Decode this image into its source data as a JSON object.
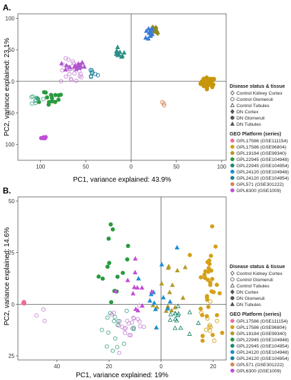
{
  "figure": {
    "panels": [
      {
        "label": "A."
      },
      {
        "label": "B."
      }
    ],
    "legend": {
      "disease_title": "Disease status & tissue",
      "disease_items": [
        {
          "label": "Control Kidney Cortex",
          "shape": "diamond",
          "filled": false
        },
        {
          "label": "Control Glomeruli",
          "shape": "circle",
          "filled": false
        },
        {
          "label": "Control Tubules",
          "shape": "triangle",
          "filled": false
        },
        {
          "label": "DN Cortex",
          "shape": "diamond",
          "filled": true
        },
        {
          "label": "DN Glomeruli",
          "shape": "circle",
          "filled": true
        },
        {
          "label": "DN Tubules",
          "shape": "triangle",
          "filled": true
        }
      ],
      "platform_title": "GEO Platform (series)",
      "platform_items": [
        {
          "label": "GPL17586 (GSE111154)",
          "color": "#f06a9a"
        },
        {
          "label": "GPL17586 (GSE96804)",
          "color": "#d4a017"
        },
        {
          "label": "GPL19184 (GSE99340)",
          "color": "#b59a2a"
        },
        {
          "label": "GPL22945 (GSE104948)",
          "color": "#2a9a3f"
        },
        {
          "label": "GPL22945 (GSE104954)",
          "color": "#1f8a6f"
        },
        {
          "label": "GPL24120 (GSE104948)",
          "color": "#1a8ed1"
        },
        {
          "label": "GPL24120 (GSE104954)",
          "color": "#1b7f9a"
        },
        {
          "label": "GPL571 (GSE301222)",
          "color": "#d7845a"
        },
        {
          "label": "GPL6300 (GSE1009)",
          "color": "#c14fd6"
        }
      ]
    }
  },
  "chart_data": [
    {
      "panel": "A.",
      "type": "scatter",
      "xlabel": "PC1, variance explained: 43.9%",
      "ylabel": "PC2, variance explained: 23.1%",
      "xticks": [
        {
          "v": -100,
          "label": "100"
        },
        {
          "v": -50,
          "label": "50"
        },
        {
          "v": 0,
          "label": "0"
        },
        {
          "v": 50,
          "label": "50"
        },
        {
          "v": 100,
          "label": "100"
        }
      ],
      "yticks": [
        {
          "v": 100,
          "label": "100"
        },
        {
          "v": 50,
          "label": "50"
        },
        {
          "v": 0,
          "label": "0"
        },
        {
          "v": -50,
          "label": "50"
        },
        {
          "v": -100,
          "label": "100"
        }
      ],
      "xlim": [
        -125,
        105
      ],
      "ylim": [
        -125,
        107
      ],
      "grid": false,
      "zero_lines": true,
      "clusters": [
        {
          "name": "GSE96804",
          "color": "#c8960c",
          "shape": "circle",
          "filled": true,
          "cx": 85,
          "cy": -2,
          "sx": 4,
          "sy": 4,
          "n": 45
        },
        {
          "name": "GSE104948",
          "color": "#8e8a1c",
          "shape": "diamond",
          "filled": true,
          "cx": 28,
          "cy": 82,
          "sx": 2,
          "sy": 3,
          "n": 10
        },
        {
          "name": "GSE104954",
          "color": "#3a7bd5",
          "shape": "triangle",
          "filled": true,
          "cx": 19,
          "cy": 75,
          "sx": 3,
          "sy": 5,
          "n": 12
        },
        {
          "name": "GSE99340",
          "color": "#2c8f86",
          "shape": "triangle",
          "filled": true,
          "cx": -13,
          "cy": 44,
          "sx": 3,
          "sy": 4,
          "n": 10
        },
        {
          "name": "GSE104954-glom",
          "color": "#1b7f9a",
          "shape": "circle",
          "filled": false,
          "cx": -43,
          "cy": 12,
          "sx": 3,
          "sy": 4,
          "n": 8
        },
        {
          "name": "GSE104948-ctrl",
          "color": "#c98ad8",
          "shape": "circle",
          "filled": false,
          "cx": -64,
          "cy": 15,
          "sx": 7,
          "sy": 10,
          "n": 28
        },
        {
          "name": "GSE104948-tub",
          "color": "#b256cf",
          "shape": "triangle",
          "filled": true,
          "cx": -63,
          "cy": 24,
          "sx": 6,
          "sy": 4,
          "n": 16
        },
        {
          "name": "GSE104948-green",
          "color": "#2a9a3f",
          "shape": "circle",
          "filled": true,
          "cx": -92,
          "cy": -25,
          "sx": 11,
          "sy": 7,
          "n": 16
        },
        {
          "name": "GSE104954-ctrl",
          "color": "#4aa98a",
          "shape": "circle",
          "filled": false,
          "cx": -104,
          "cy": -29,
          "sx": 6,
          "sy": 5,
          "n": 10
        },
        {
          "name": "GSE1009",
          "color": "#c14fd6",
          "shape": "circle",
          "filled": true,
          "cx": -95,
          "cy": -89,
          "sx": 2,
          "sy": 1,
          "n": 5
        },
        {
          "name": "GSE301222",
          "color": "#d7845a",
          "shape": "circle",
          "filled": false,
          "cx": 36,
          "cy": -34,
          "sx": 1,
          "sy": 3,
          "n": 3
        }
      ]
    },
    {
      "panel": "B.",
      "type": "scatter",
      "xlabel": "PC1, variance explained: 19%",
      "ylabel": "PC2, variance explained: 14.6%",
      "xticks": [
        {
          "v": -40,
          "label": "40"
        },
        {
          "v": -20,
          "label": "20"
        },
        {
          "v": 0,
          "label": "0"
        },
        {
          "v": 20,
          "label": "20"
        }
      ],
      "yticks": [
        {
          "v": 50,
          "label": "50"
        },
        {
          "v": 25,
          "label": "25"
        },
        {
          "v": 0,
          "label": "0"
        },
        {
          "v": -25,
          "label": "25"
        }
      ],
      "xlim": [
        -55,
        25
      ],
      "ylim": [
        -27,
        52
      ],
      "grid": false,
      "zero_lines": true,
      "clusters": [
        {
          "name": "GSE96804-right",
          "color": "#d4a017",
          "shape": "circle",
          "filled": true,
          "cx": 18,
          "cy": 10,
          "sx": 2,
          "sy": 12,
          "n": 34
        },
        {
          "name": "GSE96804-right-open",
          "color": "#d4a017",
          "shape": "circle",
          "filled": false,
          "cx": 19,
          "cy": -10,
          "sx": 2,
          "sy": 5,
          "n": 10
        },
        {
          "name": "GSE99340-mid",
          "color": "#b59a2a",
          "shape": "triangle",
          "filled": true,
          "cx": 3,
          "cy": 8,
          "sx": 3,
          "sy": 12,
          "n": 14
        },
        {
          "name": "GSE104954-tub",
          "color": "#1f8a6f",
          "shape": "triangle",
          "filled": false,
          "cx": 6,
          "cy": -8,
          "sx": 3,
          "sy": 4,
          "n": 14
        },
        {
          "name": "GSE104948-blue",
          "color": "#1a8ed1",
          "shape": "triangle",
          "filled": true,
          "cx": 0,
          "cy": 10,
          "sx": 3,
          "sy": 10,
          "n": 12
        },
        {
          "name": "GSE104948-green",
          "color": "#2a9a3f",
          "shape": "circle",
          "filled": true,
          "cx": -18,
          "cy": 18,
          "sx": 3,
          "sy": 12,
          "n": 14
        },
        {
          "name": "GSE104948-ctrl",
          "color": "#c98ad8",
          "shape": "circle",
          "filled": false,
          "cx": -12,
          "cy": -10,
          "sx": 4,
          "sy": 4,
          "n": 22
        },
        {
          "name": "GSE104954-ctrl",
          "color": "#4aa98a",
          "shape": "circle",
          "filled": false,
          "cx": -17,
          "cy": -12,
          "sx": 4,
          "sy": 4,
          "n": 16
        },
        {
          "name": "GSE104948-tub",
          "color": "#c14fd6",
          "shape": "triangle",
          "filled": true,
          "cx": -11,
          "cy": 8,
          "sx": 4,
          "sy": 6,
          "n": 12
        },
        {
          "name": "GSE111154",
          "color": "#f06a9a",
          "shape": "circle",
          "filled": true,
          "cx": -53,
          "cy": 0.5,
          "sx": 0.5,
          "sy": 0.3,
          "n": 3
        },
        {
          "name": "GSE1009-ctrl",
          "color": "#c98ad8",
          "shape": "circle",
          "filled": false,
          "cx": -47,
          "cy": -3,
          "sx": 1,
          "sy": 2,
          "n": 3
        }
      ]
    }
  ]
}
